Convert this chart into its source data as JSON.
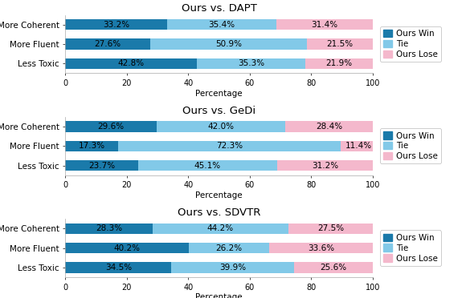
{
  "charts": [
    {
      "title": "Ours vs. DAPT",
      "categories": [
        "Less Toxic",
        "More Fluent",
        "More Coherent"
      ],
      "ours_win": [
        42.8,
        27.6,
        33.2
      ],
      "tie": [
        35.3,
        50.9,
        35.4
      ],
      "ours_lose": [
        21.9,
        21.5,
        31.4
      ]
    },
    {
      "title": "Ours vs. GeDi",
      "categories": [
        "Less Toxic",
        "More Fluent",
        "More Coherent"
      ],
      "ours_win": [
        23.7,
        17.3,
        29.6
      ],
      "tie": [
        45.1,
        72.3,
        42.0
      ],
      "ours_lose": [
        31.2,
        11.4,
        28.4
      ]
    },
    {
      "title": "Ours vs. SDVTR",
      "categories": [
        "Less Toxic",
        "More Fluent",
        "More Coherent"
      ],
      "ours_win": [
        34.5,
        40.2,
        28.3
      ],
      "tie": [
        39.9,
        26.2,
        44.2
      ],
      "ours_lose": [
        25.6,
        33.6,
        27.5
      ]
    }
  ],
  "color_win": "#1a7aaa",
  "color_tie": "#82c9e8",
  "color_lose": "#f4b8cc",
  "xlabel": "Percentage",
  "xlim": [
    0,
    100
  ],
  "xticks": [
    0,
    20,
    40,
    60,
    80,
    100
  ],
  "legend_labels": [
    "Ours Win",
    "Tie",
    "Ours Lose"
  ],
  "bar_height": 0.55,
  "text_fontsize": 7.5,
  "title_fontsize": 9.5,
  "label_fontsize": 7.5,
  "tick_fontsize": 7
}
